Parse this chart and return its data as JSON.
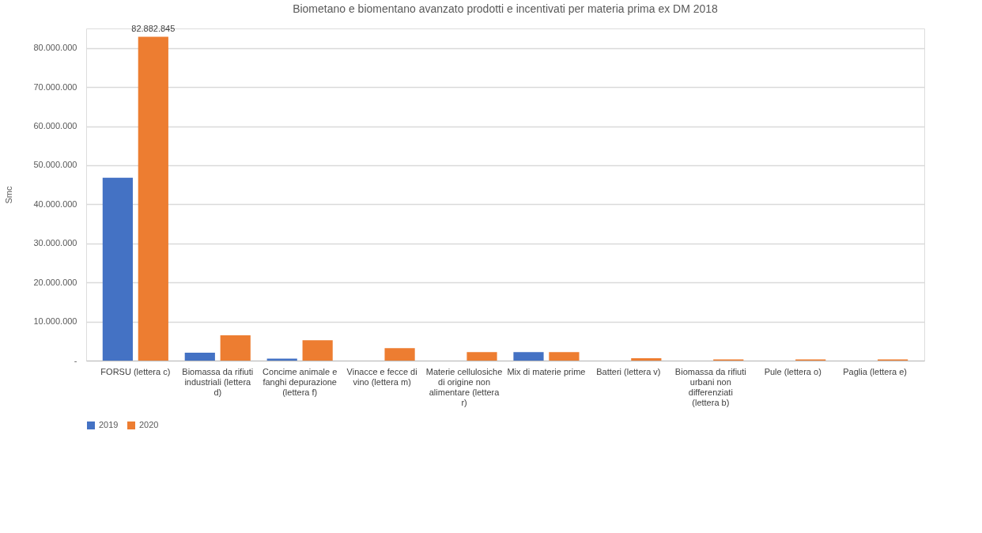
{
  "chart_data": {
    "type": "bar",
    "title": "Biometano e biomentano avanzato prodotti e incentivati per materia prima ex DM 2018",
    "ylabel": "Smc",
    "categories": [
      "FORSU (lettera c)",
      "Biomassa da rifiuti industriali (lettera d)",
      "Concime animale e fanghi depurazione (lettera f)",
      "Vinacce e fecce di vino (lettera m)",
      "Materie cellulosiche di origine non alimentare (lettera r)",
      "Mix di materie prime",
      "Batteri (lettera v)",
      "Biomassa da rifiuti urbani non differenziati (lettera b)",
      "Pule (lettera o)",
      "Paglia (lettera e)"
    ],
    "series": [
      {
        "name": "2019",
        "color": "#4472c4",
        "values": [
          46800000,
          2000000,
          500000,
          null,
          null,
          2200000,
          null,
          null,
          null,
          null
        ]
      },
      {
        "name": "2020",
        "color": "#ed7d31",
        "values": [
          82882845,
          6500000,
          5200000,
          3200000,
          2200000,
          2200000,
          600000,
          300000,
          300000,
          300000
        ],
        "value_labels": [
          "82.882.845",
          null,
          null,
          null,
          null,
          null,
          null,
          null,
          null,
          null
        ]
      }
    ],
    "ylim": [
      0,
      85000000
    ],
    "yticks": [
      {
        "value": 0,
        "label": "-"
      },
      {
        "value": 10000000,
        "label": "10.000.000"
      },
      {
        "value": 20000000,
        "label": "20.000.000"
      },
      {
        "value": 30000000,
        "label": "30.000.000"
      },
      {
        "value": 40000000,
        "label": "40.000.000"
      },
      {
        "value": 50000000,
        "label": "50.000.000"
      },
      {
        "value": 60000000,
        "label": "60.000.000"
      },
      {
        "value": 70000000,
        "label": "70.000.000"
      },
      {
        "value": 80000000,
        "label": "80.000.000"
      }
    ],
    "grid": "y",
    "legend": "bottom"
  }
}
